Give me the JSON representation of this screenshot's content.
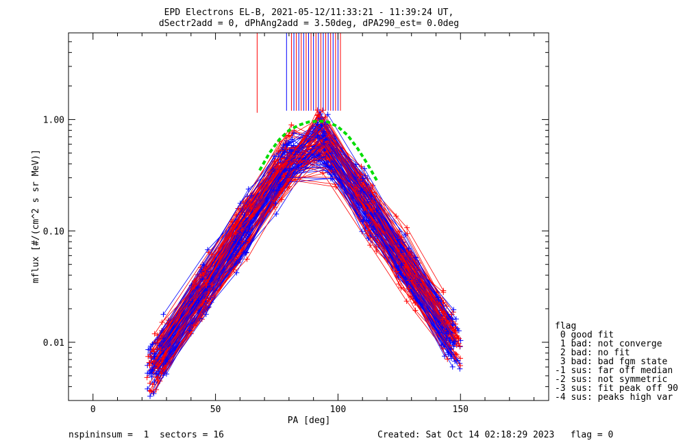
{
  "chart_data": {
    "type": "line",
    "title": "EPD Electrons EL-B, 2021-05-12/11:33:21 - 11:39:24 UT,",
    "subtitle": "dSectr2add = 0, dPhAng2add = 3.50deg, dPA290_est=   0.0deg",
    "xlabel": "PA [deg]",
    "ylabel": "mflux [#/(cm^2 s sr MeV)]",
    "xlim": [
      -10,
      186
    ],
    "ylim": [
      0.003,
      6
    ],
    "yscale": "log",
    "xticks": [
      0,
      50,
      100,
      150
    ],
    "xtick_labels": [
      "0",
      "50",
      "100",
      "150"
    ],
    "yticks": [
      0.01,
      0.1,
      1.0
    ],
    "ytick_labels": [
      "0.01",
      "0.10",
      "1.00"
    ],
    "grid": false,
    "series": [
      {
        "color": "#0000ff",
        "marker": "+"
      },
      {
        "color": "#ff0000",
        "marker": "+"
      },
      {
        "color": "#00dd00",
        "style": "dashed",
        "x": [
          68,
          72,
          76,
          80,
          84,
          88,
          92,
          96,
          100,
          104,
          108,
          112,
          116
        ],
        "y": [
          0.35,
          0.5,
          0.66,
          0.8,
          0.89,
          0.95,
          0.97,
          0.95,
          0.86,
          0.72,
          0.55,
          0.4,
          0.28
        ]
      }
    ],
    "vlines_x": [
      67,
      79,
      81,
      82,
      83,
      84,
      85,
      86,
      87,
      88,
      89,
      90,
      91,
      92,
      93,
      94,
      95,
      96,
      97,
      98,
      99,
      100,
      101
    ],
    "samples_per_side": 150,
    "legend": {
      "position": "right",
      "title": "flag",
      "entries": [
        " 0 good fit",
        " 1 bad: not converge",
        " 2 bad: no fit",
        " 3 bad: bad fgm state",
        "-1 sus: far off median",
        "-2 sus: not symmetric",
        "-3 sus: fit peak off 90",
        "-4 sus: peaks high var"
      ]
    }
  },
  "footer": {
    "left": "nspininsum =  1  sectors = 16",
    "right": "Created: Sat Oct 14 02:18:29 2023   flag = 0"
  }
}
